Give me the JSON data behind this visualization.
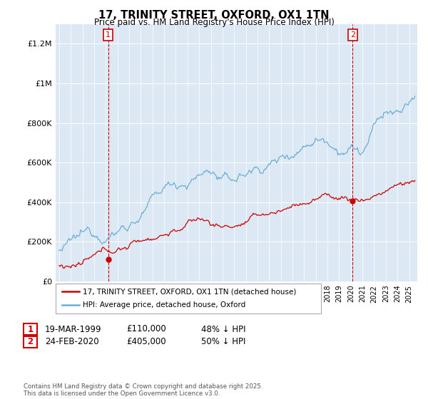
{
  "title": "17, TRINITY STREET, OXFORD, OX1 1TN",
  "subtitle": "Price paid vs. HM Land Registry's House Price Index (HPI)",
  "ylim": [
    0,
    1300000
  ],
  "yticks": [
    0,
    200000,
    400000,
    600000,
    800000,
    1000000,
    1200000
  ],
  "ytick_labels": [
    "£0",
    "£200K",
    "£400K",
    "£600K",
    "£800K",
    "£1M",
    "£1.2M"
  ],
  "hpi_color": "#6baed6",
  "price_color": "#cc0000",
  "vline_color": "#cc0000",
  "chart_bg": "#dce9f5",
  "annotation_box_facecolor": "white",
  "annotation_box_edgecolor": "#cc0000",
  "legend_label_price": "17, TRINITY STREET, OXFORD, OX1 1TN (detached house)",
  "legend_label_hpi": "HPI: Average price, detached house, Oxford",
  "annotation1_num": "1",
  "annotation1_date": "19-MAR-1999",
  "annotation1_price": "£110,000",
  "annotation1_hpi": "48% ↓ HPI",
  "annotation2_num": "2",
  "annotation2_date": "24-FEB-2020",
  "annotation2_price": "£405,000",
  "annotation2_hpi": "50% ↓ HPI",
  "footer": "Contains HM Land Registry data © Crown copyright and database right 2025.\nThis data is licensed under the Open Government Licence v3.0.",
  "sale1_year": 1999.21,
  "sale1_price": 110000,
  "sale2_year": 2020.15,
  "sale2_price": 405000,
  "xmin": 1994.7,
  "xmax": 2025.7
}
